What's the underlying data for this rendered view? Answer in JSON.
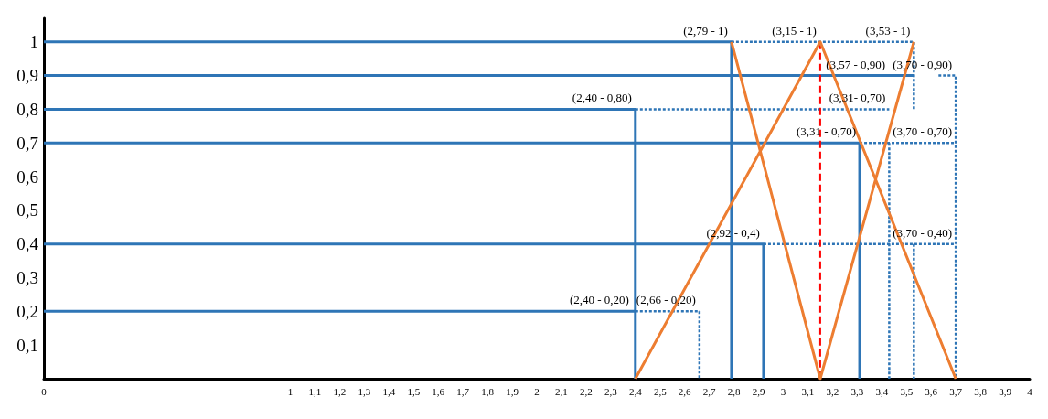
{
  "chart_data": {
    "type": "line",
    "xlim": [
      0,
      4
    ],
    "ylim": [
      0,
      1.07
    ],
    "xticks": [
      0,
      1,
      {
        "value": 1.1,
        "label": "1,1"
      },
      {
        "value": 1.2,
        "label": "1,2"
      },
      {
        "value": 1.3,
        "label": "1,3"
      },
      {
        "value": 1.4,
        "label": "1,4"
      },
      {
        "value": 1.5,
        "label": "1,5"
      },
      {
        "value": 1.6,
        "label": "1,6"
      },
      {
        "value": 1.7,
        "label": "1,7"
      },
      {
        "value": 1.8,
        "label": "1,8"
      },
      {
        "value": 1.9,
        "label": "1,9"
      },
      2,
      {
        "value": 2.1,
        "label": "2,1"
      },
      {
        "value": 2.2,
        "label": "2,2"
      },
      {
        "value": 2.3,
        "label": "2,3"
      },
      {
        "value": 2.4,
        "label": "2,4"
      },
      {
        "value": 2.5,
        "label": "2,5"
      },
      {
        "value": 2.6,
        "label": "2,6"
      },
      {
        "value": 2.7,
        "label": "2,7"
      },
      {
        "value": 2.8,
        "label": "2,8"
      },
      {
        "value": 2.9,
        "label": "2,9"
      },
      3,
      {
        "value": 3.1,
        "label": "3,1"
      },
      {
        "value": 3.2,
        "label": "3,2"
      },
      {
        "value": 3.3,
        "label": "3,3"
      },
      {
        "value": 3.4,
        "label": "3,4"
      },
      {
        "value": 3.5,
        "label": "3,5"
      },
      {
        "value": 3.6,
        "label": "3,6"
      },
      {
        "value": 3.7,
        "label": "3,7"
      },
      {
        "value": 3.8,
        "label": "3,8"
      },
      {
        "value": 3.9,
        "label": "3,9"
      },
      4
    ],
    "yticks": [
      {
        "value": 0.1,
        "label": "0,1"
      },
      {
        "value": 0.2,
        "label": "0,2"
      },
      {
        "value": 0.3,
        "label": "0,3"
      },
      {
        "value": 0.4,
        "label": "0,4"
      },
      {
        "value": 0.5,
        "label": "0,5"
      },
      {
        "value": 0.6,
        "label": "0,6"
      },
      {
        "value": 0.7,
        "label": "0,7"
      },
      {
        "value": 0.8,
        "label": "0,8"
      },
      {
        "value": 0.9,
        "label": "0,9"
      },
      1
    ],
    "grid": false,
    "marker": "none",
    "series": [
      {
        "color": "#2e75b6",
        "line_style": "solid",
        "x": [
          0,
          2.79,
          2.79,
          null,
          0,
          3.53,
          null,
          0,
          2.4,
          2.4,
          null,
          0,
          3.31,
          3.31,
          null,
          0,
          2.92,
          2.92,
          null,
          0,
          2.4
        ],
        "values": [
          1,
          1,
          0,
          null,
          0.9,
          0.9,
          null,
          0.8,
          0.8,
          0,
          null,
          0.7,
          0.7,
          0,
          null,
          0.4,
          0.4,
          0,
          null,
          0.2,
          0.2
        ]
      },
      {
        "color": "#2e75b6",
        "line_style": "dotted",
        "x": [
          2.79,
          3.53,
          3.53,
          null,
          3.63,
          3.7,
          3.7,
          null,
          2.4,
          3.43,
          null,
          3.31,
          3.7,
          null,
          3.43,
          3.43,
          null,
          2.92,
          3.7,
          null,
          3.53,
          3.53,
          null,
          2.4,
          2.66,
          2.66
        ],
        "values": [
          1,
          1,
          0.8,
          null,
          0.9,
          0.9,
          0,
          null,
          0.8,
          0.8,
          null,
          0.7,
          0.7,
          null,
          0.7,
          0,
          null,
          0.4,
          0.4,
          null,
          0.4,
          0,
          null,
          0.2,
          0.2,
          0
        ]
      },
      {
        "color": "#ff0000",
        "line_style": "dashed",
        "x": [
          3.15,
          3.15
        ],
        "values": [
          1,
          0
        ]
      },
      {
        "color": "#ed7d31",
        "line_style": "solid",
        "x": [
          2.4,
          3.15,
          3.7,
          null,
          2.79,
          3.15,
          3.53
        ],
        "values": [
          0,
          1,
          0,
          null,
          1,
          0,
          1
        ]
      }
    ],
    "annotations": [
      {
        "text": "(2,79 - 1)",
        "x": 2.79,
        "y": 1
      },
      {
        "text": "(3,15 - 1)",
        "x": 3.15,
        "y": 1
      },
      {
        "text": "(3,53 - 1)",
        "x": 3.53,
        "y": 1
      },
      {
        "text": "(3,57 - 0,90)",
        "x": 3.53,
        "y": 0.9
      },
      {
        "text": "(3,70 - 0,90)",
        "x": 3.7,
        "y": 0.9
      },
      {
        "text": "(2,40 - 0,80)",
        "x": 2.4,
        "y": 0.8
      },
      {
        "text": "(3,31- 0,70)",
        "x": 3.43,
        "y": 0.8
      },
      {
        "text": "(3,31 - 0,70)",
        "x": 3.31,
        "y": 0.7
      },
      {
        "text": "(3,70 - 0,70)",
        "x": 3.7,
        "y": 0.7
      },
      {
        "text": "(2,92 - 0,4)",
        "x": 2.92,
        "y": 0.4
      },
      {
        "text": "(3,70 - 0,40)",
        "x": 3.7,
        "y": 0.4
      },
      {
        "text": "(2,40 - 0,20)",
        "x": 2.4,
        "y": 0.2
      },
      {
        "text": "(2,66 - 0,20)",
        "x": 2.66,
        "y": 0.2
      }
    ]
  }
}
